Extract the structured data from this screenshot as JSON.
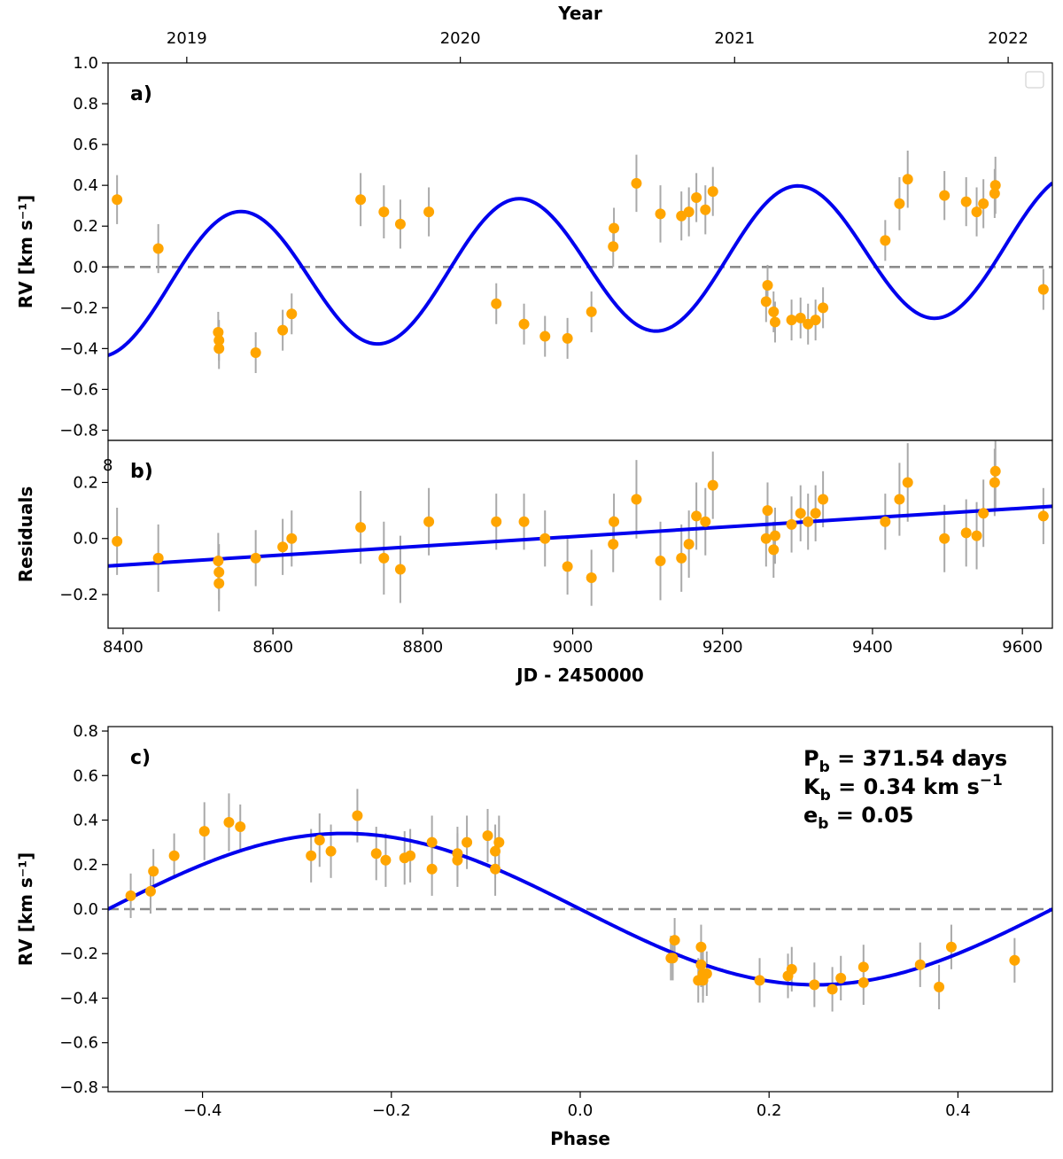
{
  "chart_data": [
    {
      "id": "a",
      "type": "scatter",
      "panel_label": "a)",
      "title": "",
      "xlabel": "",
      "ylabel": "RV [km s⁻¹]",
      "top_axis_label": "Year",
      "top_ticks": [
        {
          "label": "2019",
          "x": 8485
        },
        {
          "label": "2020",
          "x": 8850
        },
        {
          "label": "2021",
          "x": 9216
        },
        {
          "label": "2022",
          "x": 9581
        }
      ],
      "xlim": [
        8380,
        9640
      ],
      "ylim": [
        -0.85,
        1.0
      ],
      "yticks": [
        -0.8,
        -0.6,
        -0.4,
        -0.2,
        0.0,
        0.2,
        0.4,
        0.6,
        0.8,
        1.0
      ],
      "ytick_labels": [
        "−0.8",
        "−0.6",
        "−0.4",
        "−0.2",
        "0.0",
        "0.2",
        "0.4",
        "0.6",
        "0.8",
        "1.0"
      ],
      "zero_line": 0.0,
      "legend": "top-right (empty)",
      "points": [
        {
          "x": 8392,
          "y": 0.33,
          "err": 0.12
        },
        {
          "x": 8447,
          "y": 0.09,
          "err": 0.12
        },
        {
          "x": 8527,
          "y": -0.32,
          "err": 0.1
        },
        {
          "x": 8528,
          "y": -0.36,
          "err": 0.1
        },
        {
          "x": 8528,
          "y": -0.4,
          "err": 0.1
        },
        {
          "x": 8577,
          "y": -0.42,
          "err": 0.1
        },
        {
          "x": 8613,
          "y": -0.31,
          "err": 0.1
        },
        {
          "x": 8625,
          "y": -0.23,
          "err": 0.1
        },
        {
          "x": 8717,
          "y": 0.33,
          "err": 0.13
        },
        {
          "x": 8748,
          "y": 0.27,
          "err": 0.13
        },
        {
          "x": 8770,
          "y": 0.21,
          "err": 0.12
        },
        {
          "x": 8808,
          "y": 0.27,
          "err": 0.12
        },
        {
          "x": 8898,
          "y": -0.18,
          "err": 0.1
        },
        {
          "x": 8935,
          "y": -0.28,
          "err": 0.1
        },
        {
          "x": 8963,
          "y": -0.34,
          "err": 0.1
        },
        {
          "x": 8993,
          "y": -0.35,
          "err": 0.1
        },
        {
          "x": 9025,
          "y": -0.22,
          "err": 0.1
        },
        {
          "x": 9054,
          "y": 0.1,
          "err": 0.1
        },
        {
          "x": 9055,
          "y": 0.19,
          "err": 0.1
        },
        {
          "x": 9085,
          "y": 0.41,
          "err": 0.14
        },
        {
          "x": 9117,
          "y": 0.26,
          "err": 0.14
        },
        {
          "x": 9145,
          "y": 0.25,
          "err": 0.12
        },
        {
          "x": 9155,
          "y": 0.27,
          "err": 0.12
        },
        {
          "x": 9165,
          "y": 0.34,
          "err": 0.12
        },
        {
          "x": 9177,
          "y": 0.28,
          "err": 0.12
        },
        {
          "x": 9187,
          "y": 0.37,
          "err": 0.12
        },
        {
          "x": 9258,
          "y": -0.17,
          "err": 0.1
        },
        {
          "x": 9260,
          "y": -0.09,
          "err": 0.1
        },
        {
          "x": 9268,
          "y": -0.22,
          "err": 0.1
        },
        {
          "x": 9270,
          "y": -0.27,
          "err": 0.1
        },
        {
          "x": 9292,
          "y": -0.26,
          "err": 0.1
        },
        {
          "x": 9304,
          "y": -0.25,
          "err": 0.1
        },
        {
          "x": 9314,
          "y": -0.28,
          "err": 0.1
        },
        {
          "x": 9324,
          "y": -0.26,
          "err": 0.1
        },
        {
          "x": 9334,
          "y": -0.2,
          "err": 0.1
        },
        {
          "x": 9417,
          "y": 0.13,
          "err": 0.1
        },
        {
          "x": 9436,
          "y": 0.31,
          "err": 0.13
        },
        {
          "x": 9447,
          "y": 0.43,
          "err": 0.14
        },
        {
          "x": 9496,
          "y": 0.35,
          "err": 0.12
        },
        {
          "x": 9525,
          "y": 0.32,
          "err": 0.12
        },
        {
          "x": 9539,
          "y": 0.27,
          "err": 0.12
        },
        {
          "x": 9548,
          "y": 0.31,
          "err": 0.12
        },
        {
          "x": 9563,
          "y": 0.36,
          "err": 0.12
        },
        {
          "x": 9564,
          "y": 0.4,
          "err": 0.14
        },
        {
          "x": 9628,
          "y": -0.11,
          "err": 0.1
        }
      ],
      "model": {
        "type": "keplerian-sum",
        "period": 371.54,
        "K": 0.34,
        "phase_zero_jd": 9020,
        "trend_slope": 1.69e-05,
        "trend_ref": 9008,
        "trend_offset": 0.008
      }
    },
    {
      "id": "b",
      "type": "scatter",
      "panel_label": "b)",
      "title": "",
      "xlabel": "JD - 2450000",
      "ylabel": "Residuals",
      "xlim": [
        8380,
        9640
      ],
      "ylim": [
        -0.32,
        0.35
      ],
      "xticks": [
        8400,
        8600,
        8800,
        9000,
        9200,
        9400,
        9600
      ],
      "xtick_labels": [
        "8400",
        "8600",
        "8800",
        "9000",
        "9200",
        "9400",
        "9600"
      ],
      "yticks": [
        -0.2,
        0.0,
        0.2
      ],
      "ytick_labels": [
        "−0.2",
        "0.0",
        "0.2"
      ],
      "stray_tick_label": "8",
      "points": [
        {
          "x": 8392,
          "y": -0.01,
          "err": 0.12
        },
        {
          "x": 8447,
          "y": -0.07,
          "err": 0.12
        },
        {
          "x": 8527,
          "y": -0.08,
          "err": 0.1
        },
        {
          "x": 8528,
          "y": -0.12,
          "err": 0.1
        },
        {
          "x": 8528,
          "y": -0.16,
          "err": 0.1
        },
        {
          "x": 8577,
          "y": -0.07,
          "err": 0.1
        },
        {
          "x": 8613,
          "y": -0.03,
          "err": 0.1
        },
        {
          "x": 8625,
          "y": 0.0,
          "err": 0.1
        },
        {
          "x": 8717,
          "y": 0.04,
          "err": 0.13
        },
        {
          "x": 8748,
          "y": -0.07,
          "err": 0.13
        },
        {
          "x": 8770,
          "y": -0.11,
          "err": 0.12
        },
        {
          "x": 8808,
          "y": 0.06,
          "err": 0.12
        },
        {
          "x": 8898,
          "y": 0.06,
          "err": 0.1
        },
        {
          "x": 8935,
          "y": 0.06,
          "err": 0.1
        },
        {
          "x": 8963,
          "y": 0.0,
          "err": 0.1
        },
        {
          "x": 8993,
          "y": -0.1,
          "err": 0.1
        },
        {
          "x": 9025,
          "y": -0.14,
          "err": 0.1
        },
        {
          "x": 9054,
          "y": -0.02,
          "err": 0.1
        },
        {
          "x": 9055,
          "y": 0.06,
          "err": 0.1
        },
        {
          "x": 9085,
          "y": 0.14,
          "err": 0.14
        },
        {
          "x": 9117,
          "y": -0.08,
          "err": 0.14
        },
        {
          "x": 9145,
          "y": -0.07,
          "err": 0.12
        },
        {
          "x": 9155,
          "y": -0.02,
          "err": 0.12
        },
        {
          "x": 9165,
          "y": 0.08,
          "err": 0.12
        },
        {
          "x": 9177,
          "y": 0.06,
          "err": 0.12
        },
        {
          "x": 9187,
          "y": 0.19,
          "err": 0.12
        },
        {
          "x": 9258,
          "y": 0.0,
          "err": 0.1
        },
        {
          "x": 9260,
          "y": 0.1,
          "err": 0.1
        },
        {
          "x": 9268,
          "y": -0.04,
          "err": 0.1
        },
        {
          "x": 9270,
          "y": 0.01,
          "err": 0.1
        },
        {
          "x": 9292,
          "y": 0.05,
          "err": 0.1
        },
        {
          "x": 9304,
          "y": 0.09,
          "err": 0.1
        },
        {
          "x": 9314,
          "y": 0.06,
          "err": 0.1
        },
        {
          "x": 9324,
          "y": 0.09,
          "err": 0.1
        },
        {
          "x": 9334,
          "y": 0.14,
          "err": 0.1
        },
        {
          "x": 9417,
          "y": 0.06,
          "err": 0.1
        },
        {
          "x": 9436,
          "y": 0.14,
          "err": 0.13
        },
        {
          "x": 9447,
          "y": 0.2,
          "err": 0.14
        },
        {
          "x": 9496,
          "y": 0.0,
          "err": 0.12
        },
        {
          "x": 9525,
          "y": 0.02,
          "err": 0.12
        },
        {
          "x": 9539,
          "y": 0.01,
          "err": 0.12
        },
        {
          "x": 9548,
          "y": 0.09,
          "err": 0.12
        },
        {
          "x": 9563,
          "y": 0.2,
          "err": 0.12
        },
        {
          "x": 9564,
          "y": 0.24,
          "err": 0.14
        },
        {
          "x": 9628,
          "y": 0.08,
          "err": 0.1
        }
      ],
      "model": {
        "type": "linear",
        "points": [
          [
            8380,
            -0.098
          ],
          [
            9640,
            0.115
          ]
        ]
      }
    },
    {
      "id": "c",
      "type": "scatter",
      "panel_label": "c)",
      "title": "",
      "xlabel": "Phase",
      "ylabel": "RV [km s⁻¹]",
      "xlim": [
        -0.5,
        0.5
      ],
      "ylim": [
        -0.82,
        0.82
      ],
      "xticks": [
        -0.4,
        -0.2,
        0.0,
        0.2,
        0.4
      ],
      "xtick_labels": [
        "−0.4",
        "−0.2",
        "0.0",
        "0.2",
        "0.4"
      ],
      "yticks": [
        -0.8,
        -0.6,
        -0.4,
        -0.2,
        0.0,
        0.2,
        0.4,
        0.6,
        0.8
      ],
      "ytick_labels": [
        "−0.8",
        "−0.6",
        "−0.4",
        "−0.2",
        "0.0",
        "0.2",
        "0.4",
        "0.6",
        "0.8"
      ],
      "zero_line": 0.0,
      "parameters": [
        {
          "symbol": "P",
          "sub": "b",
          "value": " = 371.54 days",
          "sup": ""
        },
        {
          "symbol": "K",
          "sub": "b",
          "value": " = 0.34 km s",
          "sup": "−1"
        },
        {
          "symbol": "e",
          "sub": "b",
          "value": " = 0.05",
          "sup": ""
        }
      ],
      "points": [
        {
          "x": -0.476,
          "y": 0.06,
          "err": 0.1
        },
        {
          "x": -0.455,
          "y": 0.08,
          "err": 0.1
        },
        {
          "x": -0.452,
          "y": 0.17,
          "err": 0.1
        },
        {
          "x": -0.43,
          "y": 0.24,
          "err": 0.1
        },
        {
          "x": -0.398,
          "y": 0.35,
          "err": 0.13
        },
        {
          "x": -0.372,
          "y": 0.39,
          "err": 0.13
        },
        {
          "x": -0.36,
          "y": 0.37,
          "err": 0.1
        },
        {
          "x": -0.285,
          "y": 0.24,
          "err": 0.12
        },
        {
          "x": -0.276,
          "y": 0.31,
          "err": 0.12
        },
        {
          "x": -0.264,
          "y": 0.26,
          "err": 0.12
        },
        {
          "x": -0.236,
          "y": 0.42,
          "err": 0.12
        },
        {
          "x": -0.216,
          "y": 0.25,
          "err": 0.12
        },
        {
          "x": -0.206,
          "y": 0.22,
          "err": 0.12
        },
        {
          "x": -0.186,
          "y": 0.23,
          "err": 0.12
        },
        {
          "x": -0.18,
          "y": 0.24,
          "err": 0.12
        },
        {
          "x": -0.157,
          "y": 0.3,
          "err": 0.12
        },
        {
          "x": -0.157,
          "y": 0.18,
          "err": 0.12
        },
        {
          "x": -0.13,
          "y": 0.25,
          "err": 0.12
        },
        {
          "x": -0.13,
          "y": 0.22,
          "err": 0.12
        },
        {
          "x": -0.12,
          "y": 0.3,
          "err": 0.12
        },
        {
          "x": -0.098,
          "y": 0.33,
          "err": 0.12
        },
        {
          "x": -0.09,
          "y": 0.18,
          "err": 0.12
        },
        {
          "x": -0.09,
          "y": 0.26,
          "err": 0.12
        },
        {
          "x": -0.086,
          "y": 0.3,
          "err": 0.12
        },
        {
          "x": 0.096,
          "y": -0.22,
          "err": 0.1
        },
        {
          "x": 0.098,
          "y": -0.22,
          "err": 0.1
        },
        {
          "x": 0.1,
          "y": -0.14,
          "err": 0.1
        },
        {
          "x": 0.125,
          "y": -0.32,
          "err": 0.1
        },
        {
          "x": 0.128,
          "y": -0.17,
          "err": 0.1
        },
        {
          "x": 0.128,
          "y": -0.25,
          "err": 0.1
        },
        {
          "x": 0.13,
          "y": -0.29,
          "err": 0.1
        },
        {
          "x": 0.13,
          "y": -0.32,
          "err": 0.1
        },
        {
          "x": 0.134,
          "y": -0.29,
          "err": 0.1
        },
        {
          "x": 0.19,
          "y": -0.32,
          "err": 0.1
        },
        {
          "x": 0.22,
          "y": -0.3,
          "err": 0.1
        },
        {
          "x": 0.224,
          "y": -0.27,
          "err": 0.1
        },
        {
          "x": 0.248,
          "y": -0.34,
          "err": 0.1
        },
        {
          "x": 0.267,
          "y": -0.36,
          "err": 0.1
        },
        {
          "x": 0.276,
          "y": -0.31,
          "err": 0.1
        },
        {
          "x": 0.3,
          "y": -0.33,
          "err": 0.1
        },
        {
          "x": 0.3,
          "y": -0.26,
          "err": 0.1
        },
        {
          "x": 0.36,
          "y": -0.25,
          "err": 0.1
        },
        {
          "x": 0.38,
          "y": -0.35,
          "err": 0.1
        },
        {
          "x": 0.393,
          "y": -0.17,
          "err": 0.1
        },
        {
          "x": 0.46,
          "y": -0.23,
          "err": 0.1
        }
      ],
      "model": {
        "type": "sinusoid",
        "K": 0.34,
        "phase_shift": 0.0
      }
    }
  ]
}
